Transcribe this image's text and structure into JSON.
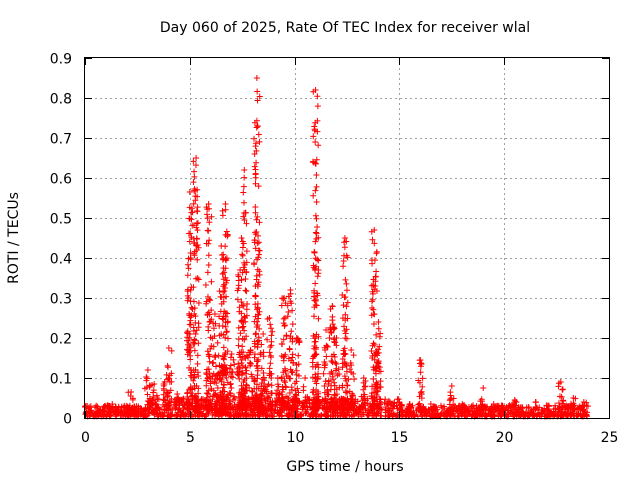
{
  "chart_data": {
    "type": "scatter",
    "title": "Day 060 of 2025, Rate Of TEC Index for receiver wlal",
    "xlabel": "GPS time / hours",
    "ylabel": "ROTI / TECUs",
    "xlim": [
      0,
      25
    ],
    "ylim": [
      0,
      0.9
    ],
    "x_ticks": [
      "0",
      "5",
      "10",
      "15",
      "20",
      "25"
    ],
    "y_ticks": [
      "0",
      "0.1",
      "0.2",
      "0.3",
      "0.4",
      "0.5",
      "0.6",
      "0.7",
      "0.8",
      "0.9"
    ],
    "grid": true,
    "marker": "+",
    "color": "#ff0000",
    "peaks": [
      {
        "x": 1.3,
        "y": 0.035
      },
      {
        "x": 2.2,
        "y": 0.065
      },
      {
        "x": 3.0,
        "y": 0.12
      },
      {
        "x": 3.3,
        "y": 0.085
      },
      {
        "x": 3.8,
        "y": 0.09
      },
      {
        "x": 4.0,
        "y": 0.175
      },
      {
        "x": 4.4,
        "y": 0.06
      },
      {
        "x": 5.0,
        "y": 0.565
      },
      {
        "x": 5.3,
        "y": 0.65
      },
      {
        "x": 5.9,
        "y": 0.535
      },
      {
        "x": 6.2,
        "y": 0.26
      },
      {
        "x": 6.5,
        "y": 0.43
      },
      {
        "x": 6.7,
        "y": 0.535
      },
      {
        "x": 7.0,
        "y": 0.16
      },
      {
        "x": 7.4,
        "y": 0.37
      },
      {
        "x": 7.6,
        "y": 0.62
      },
      {
        "x": 7.9,
        "y": 0.17
      },
      {
        "x": 8.2,
        "y": 0.85
      },
      {
        "x": 8.5,
        "y": 0.21
      },
      {
        "x": 8.8,
        "y": 0.25
      },
      {
        "x": 9.2,
        "y": 0.1
      },
      {
        "x": 9.5,
        "y": 0.3
      },
      {
        "x": 9.8,
        "y": 0.32
      },
      {
        "x": 10.1,
        "y": 0.2
      },
      {
        "x": 10.5,
        "y": 0.1
      },
      {
        "x": 11.0,
        "y": 0.82
      },
      {
        "x": 11.5,
        "y": 0.22
      },
      {
        "x": 11.8,
        "y": 0.28
      },
      {
        "x": 12.0,
        "y": 0.2
      },
      {
        "x": 12.4,
        "y": 0.45
      },
      {
        "x": 12.7,
        "y": 0.17
      },
      {
        "x": 13.3,
        "y": 0.1
      },
      {
        "x": 13.8,
        "y": 0.47
      },
      {
        "x": 14.0,
        "y": 0.24
      },
      {
        "x": 15.0,
        "y": 0.04
      },
      {
        "x": 15.5,
        "y": 0.035
      },
      {
        "x": 16.0,
        "y": 0.145
      },
      {
        "x": 16.5,
        "y": 0.035
      },
      {
        "x": 17.5,
        "y": 0.08
      },
      {
        "x": 18.0,
        "y": 0.035
      },
      {
        "x": 19.0,
        "y": 0.075
      },
      {
        "x": 19.5,
        "y": 0.035
      },
      {
        "x": 20.5,
        "y": 0.045
      },
      {
        "x": 21.5,
        "y": 0.04
      },
      {
        "x": 22.7,
        "y": 0.09
      },
      {
        "x": 23.3,
        "y": 0.05
      },
      {
        "x": 23.8,
        "y": 0.04
      }
    ]
  }
}
